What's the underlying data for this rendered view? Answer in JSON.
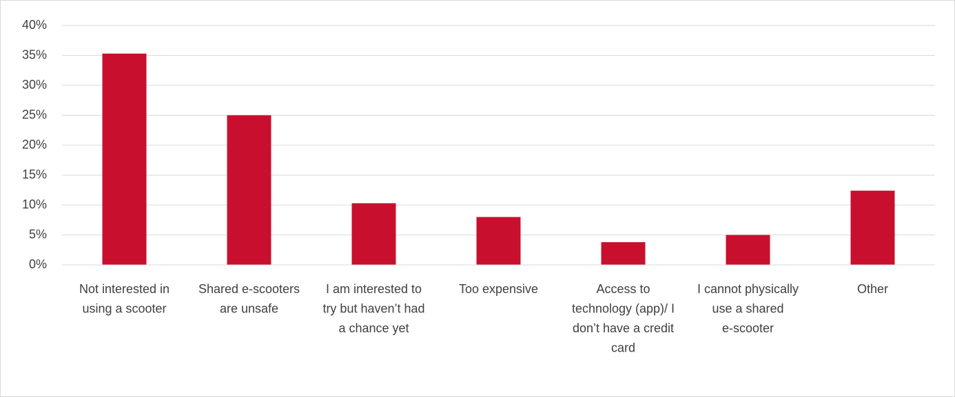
{
  "chart_data": {
    "type": "bar",
    "categories": [
      "Not interested in using a scooter",
      "Shared e-scooters are unsafe",
      "I am interested to try but haven’t had a chance yet",
      "Too expensive",
      "Access to technology (app)/ I don’t have a credit card",
      "I cannot physically use a shared e-scooter",
      "Other"
    ],
    "values": [
      35.3,
      25,
      10.3,
      8,
      3.8,
      5,
      12.4
    ],
    "color": "#c8102e",
    "ylim": [
      0,
      40
    ],
    "yticks": [
      {
        "value": 0,
        "label": "0%"
      },
      {
        "value": 5,
        "label": "5%"
      },
      {
        "value": 10,
        "label": "10%"
      },
      {
        "value": 15,
        "label": "15%"
      },
      {
        "value": 20,
        "label": "20%"
      },
      {
        "value": 25,
        "label": "25%"
      },
      {
        "value": 30,
        "label": "30%"
      },
      {
        "value": 35,
        "label": "35%"
      },
      {
        "value": 40,
        "label": "40%"
      }
    ],
    "grid": true
  }
}
